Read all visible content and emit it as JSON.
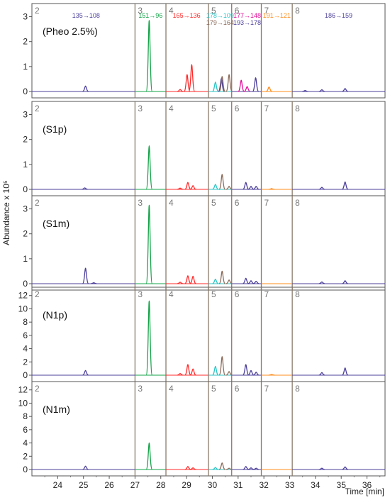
{
  "chart_data": {
    "type": "line",
    "ylabel": "Abundance x 10⁵",
    "xlabel": "Time [min]",
    "xlim": [
      23,
      36.7
    ],
    "x_ticks": [
      "24",
      "25",
      "26",
      "27",
      "28",
      "29",
      "30",
      "31",
      "32",
      "33",
      "34",
      "35",
      "36"
    ],
    "segments": [
      {
        "label": "2",
        "start": 23.0,
        "end": 27.0,
        "color": "#4b3f9a"
      },
      {
        "label": "3",
        "start": 27.0,
        "end": 28.2,
        "color": "#16a34a"
      },
      {
        "label": "4",
        "start": 28.2,
        "end": 29.85,
        "color": "#ff2a2a"
      },
      {
        "label": "5",
        "start": 29.85,
        "end": 30.75,
        "color": "#2ec4c4"
      },
      {
        "label": "6",
        "start": 30.75,
        "end": 31.9,
        "color": "#4b3f9a"
      },
      {
        "label": "7",
        "start": 31.9,
        "end": 33.1,
        "color": "#ff8c1a"
      },
      {
        "label": "8",
        "start": 33.1,
        "end": 36.7,
        "color": "#4b3f9a"
      }
    ],
    "transitions": [
      {
        "label": "135→108",
        "x": 25.1,
        "row": 0,
        "color": "#4b3f9a"
      },
      {
        "label": "151→96",
        "x": 27.6,
        "row": 0,
        "color": "#16a34a"
      },
      {
        "label": "165→136",
        "x": 29.0,
        "row": 0,
        "color": "#ff2a2a"
      },
      {
        "label": "178→109",
        "x": 30.3,
        "row": 0,
        "color": "#2ec4c4"
      },
      {
        "label": "179→164",
        "x": 30.3,
        "row": 1,
        "color": "#8b6b5a"
      },
      {
        "label": "177→148",
        "x": 31.35,
        "row": 0,
        "color": "#e0109a"
      },
      {
        "label": "193→178",
        "x": 31.35,
        "row": 1,
        "color": "#4b3f9a"
      },
      {
        "label": "191→121",
        "x": 32.5,
        "row": 0,
        "color": "#ff8c1a"
      },
      {
        "label": "186→159",
        "x": 34.9,
        "row": 0,
        "color": "#4b3f9a"
      }
    ],
    "panels": [
      {
        "name": "(Pheo 2.5%)",
        "ylim": [
          0,
          3.3
        ],
        "yticks": [
          0,
          1,
          2,
          3
        ],
        "peaks": [
          {
            "x": 25.08,
            "h": 0.22,
            "color": "#4b3f9a"
          },
          {
            "x": 27.55,
            "h": 2.85,
            "color": "#16a34a"
          },
          {
            "x": 28.75,
            "h": 0.08,
            "color": "#ff2a2a"
          },
          {
            "x": 29.02,
            "h": 0.68,
            "color": "#ff2a2a"
          },
          {
            "x": 29.2,
            "h": 1.08,
            "color": "#ff2a2a"
          },
          {
            "x": 30.12,
            "h": 0.38,
            "color": "#2ec4c4"
          },
          {
            "x": 30.35,
            "h": 0.52,
            "color": "#4b3f9a"
          },
          {
            "x": 30.38,
            "h": 0.6,
            "color": "#8b6b5a"
          },
          {
            "x": 30.65,
            "h": 0.68,
            "color": "#8b6b5a"
          },
          {
            "x": 31.12,
            "h": 0.45,
            "color": "#e0109a"
          },
          {
            "x": 31.35,
            "h": 0.2,
            "color": "#e0109a"
          },
          {
            "x": 31.68,
            "h": 0.55,
            "color": "#4b3f9a"
          },
          {
            "x": 32.2,
            "h": 0.18,
            "color": "#ff8c1a"
          },
          {
            "x": 33.6,
            "h": 0.04,
            "color": "#4b3f9a"
          },
          {
            "x": 34.25,
            "h": 0.07,
            "color": "#4b3f9a"
          },
          {
            "x": 35.15,
            "h": 0.12,
            "color": "#4b3f9a"
          }
        ]
      },
      {
        "name": "(S1p)",
        "ylim": [
          0,
          3.3
        ],
        "yticks": [
          0,
          1,
          2,
          3
        ],
        "peaks": [
          {
            "x": 25.05,
            "h": 0.06,
            "color": "#4b3f9a"
          },
          {
            "x": 27.55,
            "h": 1.75,
            "color": "#16a34a"
          },
          {
            "x": 28.75,
            "h": 0.05,
            "color": "#ff2a2a"
          },
          {
            "x": 29.05,
            "h": 0.28,
            "color": "#ff2a2a"
          },
          {
            "x": 29.25,
            "h": 0.15,
            "color": "#ff2a2a"
          },
          {
            "x": 30.12,
            "h": 0.2,
            "color": "#2ec4c4"
          },
          {
            "x": 30.38,
            "h": 0.6,
            "color": "#8b6b5a"
          },
          {
            "x": 30.65,
            "h": 0.12,
            "color": "#8b6b5a"
          },
          {
            "x": 31.3,
            "h": 0.28,
            "color": "#4b3f9a"
          },
          {
            "x": 31.5,
            "h": 0.12,
            "color": "#4b3f9a"
          },
          {
            "x": 31.7,
            "h": 0.12,
            "color": "#4b3f9a"
          },
          {
            "x": 32.3,
            "h": 0.03,
            "color": "#ff8c1a"
          },
          {
            "x": 34.25,
            "h": 0.08,
            "color": "#4b3f9a"
          },
          {
            "x": 35.15,
            "h": 0.3,
            "color": "#4b3f9a"
          }
        ]
      },
      {
        "name": "(S1m)",
        "ylim": [
          0,
          3.3
        ],
        "yticks": [
          0,
          1,
          2,
          3
        ],
        "peaks": [
          {
            "x": 25.08,
            "h": 0.62,
            "color": "#4b3f9a"
          },
          {
            "x": 25.4,
            "h": 0.04,
            "color": "#4b3f9a"
          },
          {
            "x": 27.55,
            "h": 3.15,
            "color": "#16a34a"
          },
          {
            "x": 28.75,
            "h": 0.06,
            "color": "#ff2a2a"
          },
          {
            "x": 29.05,
            "h": 0.32,
            "color": "#ff2a2a"
          },
          {
            "x": 29.25,
            "h": 0.3,
            "color": "#ff2a2a"
          },
          {
            "x": 30.12,
            "h": 0.18,
            "color": "#2ec4c4"
          },
          {
            "x": 30.38,
            "h": 0.5,
            "color": "#8b6b5a"
          },
          {
            "x": 30.65,
            "h": 0.15,
            "color": "#8b6b5a"
          },
          {
            "x": 31.3,
            "h": 0.22,
            "color": "#4b3f9a"
          },
          {
            "x": 31.5,
            "h": 0.12,
            "color": "#4b3f9a"
          },
          {
            "x": 31.7,
            "h": 0.1,
            "color": "#4b3f9a"
          },
          {
            "x": 34.25,
            "h": 0.07,
            "color": "#4b3f9a"
          },
          {
            "x": 35.15,
            "h": 0.12,
            "color": "#4b3f9a"
          }
        ]
      },
      {
        "name": "(N1p)",
        "ylim": [
          0,
          12.4
        ],
        "yticks": [
          0,
          2,
          4,
          6,
          8,
          10,
          12
        ],
        "peaks": [
          {
            "x": 25.08,
            "h": 0.7,
            "color": "#4b3f9a"
          },
          {
            "x": 27.55,
            "h": 11.2,
            "color": "#16a34a"
          },
          {
            "x": 28.75,
            "h": 0.25,
            "color": "#ff2a2a"
          },
          {
            "x": 29.05,
            "h": 1.6,
            "color": "#ff2a2a"
          },
          {
            "x": 29.25,
            "h": 0.95,
            "color": "#ff2a2a"
          },
          {
            "x": 30.12,
            "h": 1.35,
            "color": "#2ec4c4"
          },
          {
            "x": 30.38,
            "h": 2.8,
            "color": "#8b6b5a"
          },
          {
            "x": 30.65,
            "h": 0.55,
            "color": "#8b6b5a"
          },
          {
            "x": 31.3,
            "h": 1.6,
            "color": "#4b3f9a"
          },
          {
            "x": 31.5,
            "h": 0.7,
            "color": "#4b3f9a"
          },
          {
            "x": 31.7,
            "h": 0.45,
            "color": "#4b3f9a"
          },
          {
            "x": 32.3,
            "h": 0.1,
            "color": "#ff8c1a"
          },
          {
            "x": 34.25,
            "h": 0.4,
            "color": "#4b3f9a"
          },
          {
            "x": 35.15,
            "h": 1.1,
            "color": "#4b3f9a"
          }
        ]
      },
      {
        "name": "(N1m)",
        "ylim": [
          0,
          12.4
        ],
        "yticks": [
          0,
          2,
          4,
          6,
          8,
          10,
          12
        ],
        "peaks": [
          {
            "x": 25.08,
            "h": 0.5,
            "color": "#4b3f9a"
          },
          {
            "x": 27.55,
            "h": 4.0,
            "color": "#16a34a"
          },
          {
            "x": 29.05,
            "h": 0.45,
            "color": "#ff2a2a"
          },
          {
            "x": 29.25,
            "h": 0.25,
            "color": "#ff2a2a"
          },
          {
            "x": 30.12,
            "h": 0.3,
            "color": "#2ec4c4"
          },
          {
            "x": 30.38,
            "h": 1.0,
            "color": "#8b6b5a"
          },
          {
            "x": 30.65,
            "h": 0.2,
            "color": "#8b6b5a"
          },
          {
            "x": 31.3,
            "h": 0.45,
            "color": "#4b3f9a"
          },
          {
            "x": 31.5,
            "h": 0.25,
            "color": "#4b3f9a"
          },
          {
            "x": 31.7,
            "h": 0.2,
            "color": "#4b3f9a"
          },
          {
            "x": 34.25,
            "h": 0.2,
            "color": "#4b3f9a"
          },
          {
            "x": 35.15,
            "h": 0.4,
            "color": "#4b3f9a"
          }
        ]
      }
    ]
  }
}
